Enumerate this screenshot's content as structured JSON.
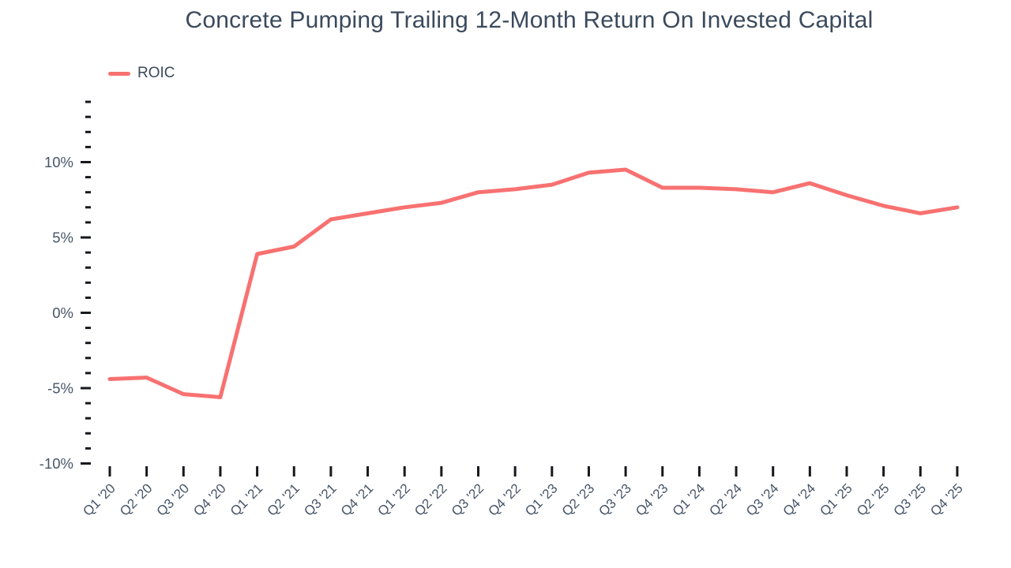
{
  "chart_data": {
    "type": "line",
    "title": "Concrete Pumping Trailing 12-Month Return On Invested Capital",
    "categories": [
      "Q1 '20",
      "Q2 '20",
      "Q3 '20",
      "Q4 '20",
      "Q1 '21",
      "Q2 '21",
      "Q3 '21",
      "Q4 '21",
      "Q1 '22",
      "Q2 '22",
      "Q3 '22",
      "Q4 '22",
      "Q1 '23",
      "Q2 '23",
      "Q3 '23",
      "Q4 '23",
      "Q1 '24",
      "Q2 '24",
      "Q3 '24",
      "Q4 '24",
      "Q1 '25",
      "Q2 '25",
      "Q3 '25",
      "Q4 '25"
    ],
    "series": [
      {
        "name": "ROIC",
        "color": "#f87171",
        "values": [
          -4.4,
          -4.3,
          -5.4,
          -5.6,
          3.9,
          4.4,
          6.2,
          6.6,
          7.0,
          7.3,
          8.0,
          8.2,
          8.5,
          9.3,
          9.5,
          8.3,
          8.3,
          8.2,
          8.0,
          8.6,
          7.8,
          7.1,
          6.6,
          7.0
        ]
      }
    ],
    "xlabel": "",
    "ylabel": "",
    "ylim": [
      -10,
      14
    ],
    "y_major_tick_step": 5,
    "y_minor_tick_step": 1,
    "y_major_tick_labels": [
      "-10%",
      "-5%",
      "0%",
      "5%",
      "10%"
    ],
    "y_tick_format": "percent",
    "x_label_rotation_deg": -45,
    "grid": false,
    "legend_position": "top-left",
    "colors": {
      "line": "#f87171",
      "title_text": "#3b4a5c",
      "axis_label_text": "#475569",
      "tick_mark": "#16181d",
      "background": "#ffffff"
    }
  }
}
